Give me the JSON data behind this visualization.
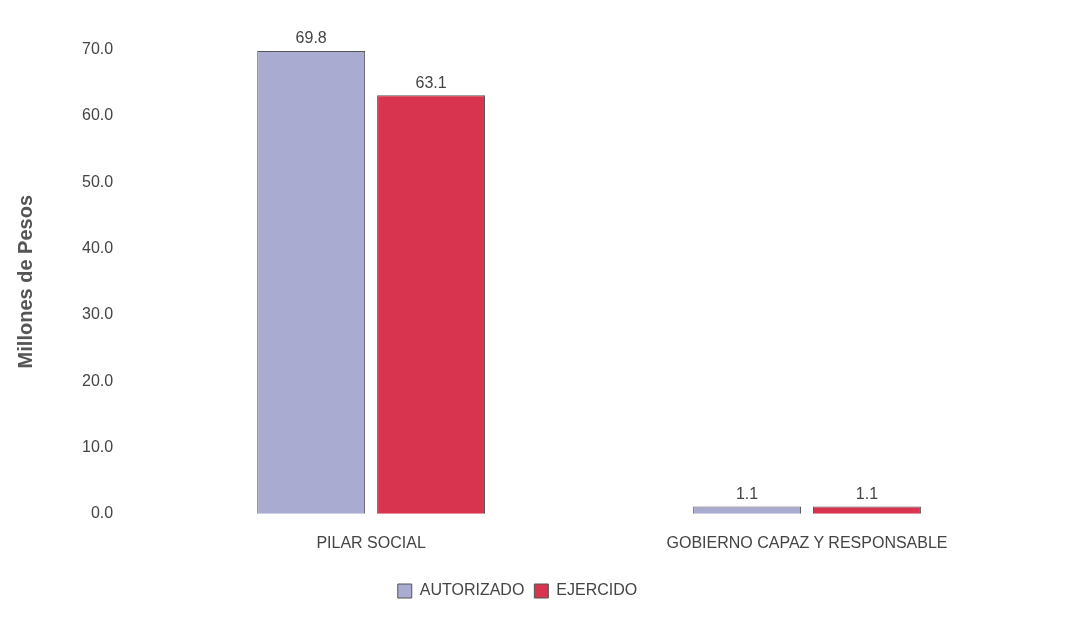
{
  "chart_data": {
    "type": "bar",
    "ylabel": "Millones de Pesos",
    "categories": [
      "PILAR SOCIAL",
      "GOBIERNO CAPAZ Y RESPONSABLE"
    ],
    "series": [
      {
        "name": "AUTORIZADO",
        "color": "#a9acd0",
        "values": [
          69.8,
          1.1
        ]
      },
      {
        "name": "EJERCIDO",
        "color": "#d9344f",
        "values": [
          63.1,
          1.1
        ]
      }
    ],
    "ylim": [
      0,
      70
    ],
    "yticks": [
      {
        "value": 0,
        "label": "0.0"
      },
      {
        "value": 10,
        "label": "10.0"
      },
      {
        "value": 20,
        "label": "20.0"
      },
      {
        "value": 30,
        "label": "30.0"
      },
      {
        "value": 40,
        "label": "40.0"
      },
      {
        "value": 50,
        "label": "50.0"
      },
      {
        "value": 60,
        "label": "60.0"
      },
      {
        "value": 70,
        "label": "70.0"
      }
    ],
    "data_labels": true,
    "grid": false,
    "legend": "bottom"
  }
}
